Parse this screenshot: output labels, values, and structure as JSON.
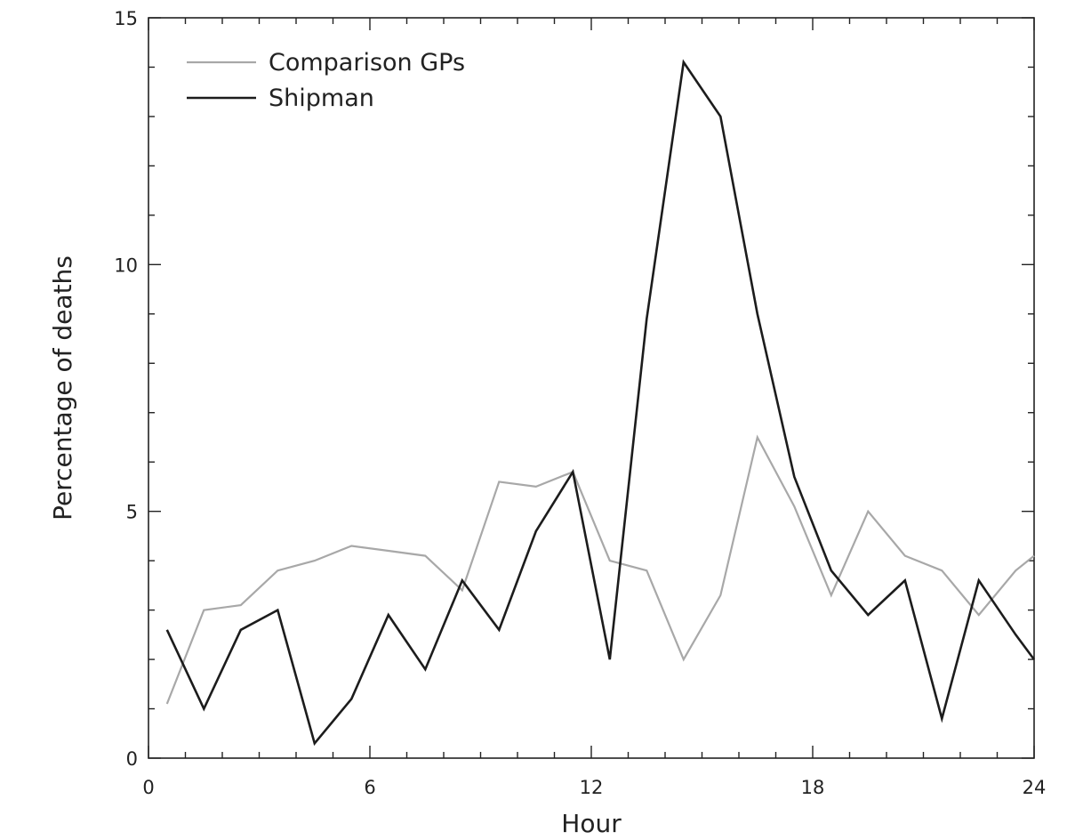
{
  "chart_data": {
    "type": "line",
    "title": "",
    "xlabel": "Hour",
    "ylabel": "Percentage of deaths",
    "xlim": [
      0,
      24
    ],
    "ylim": [
      0,
      15
    ],
    "xticks": [
      "0",
      "6",
      "12",
      "18",
      "24"
    ],
    "yticks": [
      "0",
      "5",
      "10",
      "15"
    ],
    "grid": false,
    "legend": "top-left",
    "series": [
      {
        "name": "Comparison GPs",
        "color": "#a8a8a8",
        "x": [
          0.5,
          1.5,
          2.5,
          3.5,
          4.5,
          5.5,
          6.5,
          7.5,
          8.5,
          9.5,
          10.5,
          11.5,
          12.5,
          13.5,
          14.5,
          15.5,
          16.5,
          17.5,
          18.5,
          19.5,
          20.5,
          21.5,
          22.5,
          23.5,
          24
        ],
        "values": [
          1.1,
          3.0,
          3.1,
          3.8,
          4.0,
          4.3,
          4.2,
          4.1,
          3.4,
          5.6,
          5.5,
          5.8,
          4.0,
          3.8,
          2.0,
          3.3,
          6.5,
          5.1,
          3.3,
          5.0,
          4.1,
          3.8,
          2.9,
          3.8,
          4.1
        ]
      },
      {
        "name": "Shipman",
        "color": "#1c1c1c",
        "x": [
          0.5,
          1.5,
          2.5,
          3.5,
          4.5,
          5.5,
          6.5,
          7.5,
          8.5,
          9.5,
          10.5,
          11.5,
          12.5,
          13.5,
          14.5,
          15.5,
          16.5,
          17.5,
          18.5,
          19.5,
          20.5,
          21.5,
          22.5,
          23.5,
          24
        ],
        "values": [
          2.6,
          1.0,
          2.6,
          3.0,
          0.3,
          1.2,
          2.9,
          1.8,
          3.6,
          2.6,
          4.6,
          5.8,
          2.0,
          8.9,
          14.1,
          13.0,
          9.0,
          5.7,
          3.8,
          2.9,
          3.6,
          0.8,
          3.6,
          2.5,
          2.0
        ]
      }
    ]
  }
}
